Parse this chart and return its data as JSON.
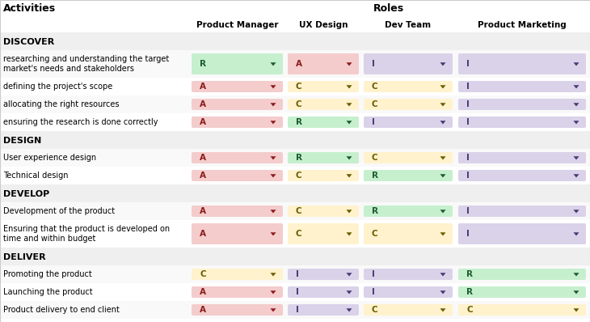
{
  "col_header_roles": "Roles",
  "col_header_activities": "Activities",
  "col_headers": [
    "Product Manager",
    "UX Design",
    "Dev Team",
    "Product Marketing"
  ],
  "sections": [
    {
      "name": "DISCOVER",
      "rows": [
        {
          "activity": "researching and understanding the target\nmarket's needs and stakeholders",
          "values": [
            "R",
            "A",
            "I",
            "I"
          ],
          "colors": [
            "#c6efce",
            "#f4cccc",
            "#d9d2e9",
            "#d9d2e9"
          ]
        },
        {
          "activity": "defining the project's scope",
          "values": [
            "A",
            "C",
            "C",
            "I"
          ],
          "colors": [
            "#f4cccc",
            "#fff2cc",
            "#fff2cc",
            "#d9d2e9"
          ]
        },
        {
          "activity": "allocating the right resources",
          "values": [
            "A",
            "C",
            "C",
            "I"
          ],
          "colors": [
            "#f4cccc",
            "#fff2cc",
            "#fff2cc",
            "#d9d2e9"
          ]
        },
        {
          "activity": "ensuring the research is done correctly",
          "values": [
            "A",
            "R",
            "I",
            "I"
          ],
          "colors": [
            "#f4cccc",
            "#c6efce",
            "#d9d2e9",
            "#d9d2e9"
          ]
        }
      ]
    },
    {
      "name": "DESIGN",
      "rows": [
        {
          "activity": "User experience design",
          "values": [
            "A",
            "R",
            "C",
            "I"
          ],
          "colors": [
            "#f4cccc",
            "#c6efce",
            "#fff2cc",
            "#d9d2e9"
          ]
        },
        {
          "activity": "Technical design",
          "values": [
            "A",
            "C",
            "R",
            "I"
          ],
          "colors": [
            "#f4cccc",
            "#fff2cc",
            "#c6efce",
            "#d9d2e9"
          ]
        }
      ]
    },
    {
      "name": "DEVELOP",
      "rows": [
        {
          "activity": "Development of the product",
          "values": [
            "A",
            "C",
            "R",
            "I"
          ],
          "colors": [
            "#f4cccc",
            "#fff2cc",
            "#c6efce",
            "#d9d2e9"
          ]
        },
        {
          "activity": "Ensuring that the product is developed on\ntime and within budget",
          "values": [
            "A",
            "C",
            "C",
            "I"
          ],
          "colors": [
            "#f4cccc",
            "#fff2cc",
            "#fff2cc",
            "#d9d2e9"
          ]
        }
      ]
    },
    {
      "name": "DELIVER",
      "rows": [
        {
          "activity": "Promoting the product",
          "values": [
            "C",
            "I",
            "I",
            "R"
          ],
          "colors": [
            "#fff2cc",
            "#d9d2e9",
            "#d9d2e9",
            "#c6efce"
          ]
        },
        {
          "activity": "Launching the product",
          "values": [
            "A",
            "I",
            "I",
            "R"
          ],
          "colors": [
            "#f4cccc",
            "#d9d2e9",
            "#d9d2e9",
            "#c6efce"
          ]
        },
        {
          "activity": "Product delivery to end client",
          "values": [
            "A",
            "I",
            "C",
            "C"
          ],
          "colors": [
            "#f4cccc",
            "#d9d2e9",
            "#fff2cc",
            "#fff2cc"
          ]
        }
      ]
    }
  ],
  "bg_color": "#ffffff",
  "section_bg": "#efefef",
  "text_color": "#000000",
  "raci_letter_colors": {
    "#c6efce": "#1a5c2a",
    "#f4cccc": "#8b1a1a",
    "#fff2cc": "#6b5a00",
    "#d9d2e9": "#4a3570"
  },
  "tri_colors": {
    "#c6efce": "#1a5c2a",
    "#f4cccc": "#8b1a1a",
    "#fff2cc": "#6b5a00",
    "#d9d2e9": "#4a3570"
  }
}
